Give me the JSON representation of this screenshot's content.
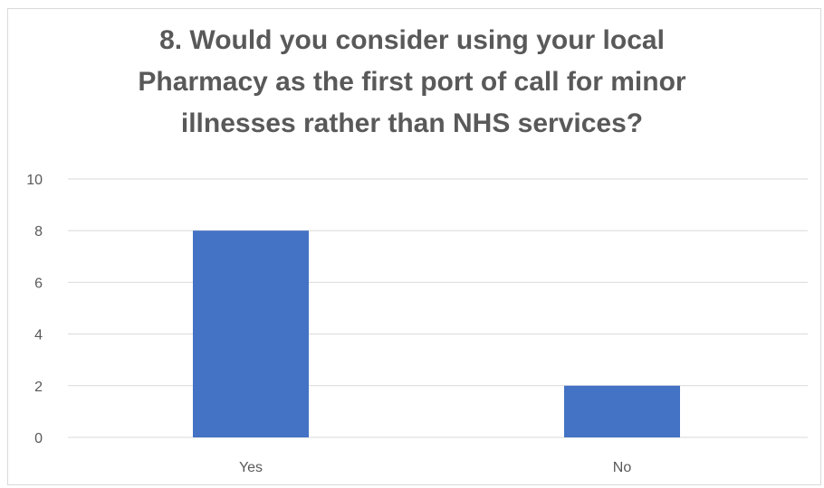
{
  "chart_data": {
    "type": "bar",
    "title_lines": [
      "8. Would you consider using your local",
      "Pharmacy as the first port of call for minor",
      "illnesses rather than NHS services?"
    ],
    "categories": [
      "Yes",
      "No"
    ],
    "values": [
      8,
      2
    ],
    "xlabel": "",
    "ylabel": "",
    "ylim": [
      0,
      10
    ],
    "yticks": [
      "0",
      "2",
      "4",
      "6",
      "8",
      "10"
    ],
    "grid": true,
    "legend": "none",
    "bar_color": "#4472c4",
    "grid_color": "#d9d9d9"
  }
}
